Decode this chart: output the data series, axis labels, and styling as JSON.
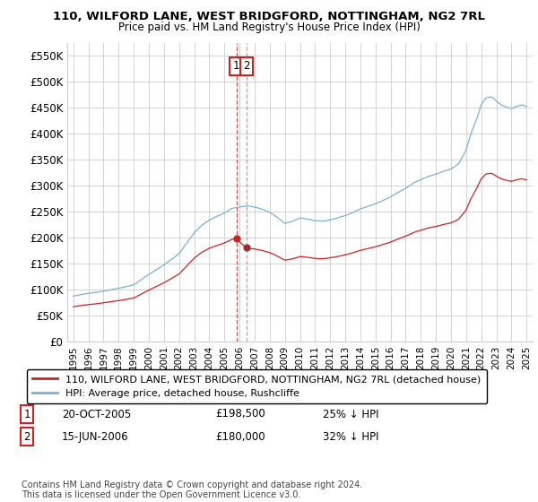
{
  "title": "110, WILFORD LANE, WEST BRIDGFORD, NOTTINGHAM, NG2 7RL",
  "subtitle": "Price paid vs. HM Land Registry's House Price Index (HPI)",
  "ylabel_ticks": [
    "£0",
    "£50K",
    "£100K",
    "£150K",
    "£200K",
    "£250K",
    "£300K",
    "£350K",
    "£400K",
    "£450K",
    "£500K",
    "£550K"
  ],
  "ytick_values": [
    0,
    50000,
    100000,
    150000,
    200000,
    250000,
    300000,
    350000,
    400000,
    450000,
    500000,
    550000
  ],
  "ylim": [
    0,
    575000
  ],
  "legend_line1": "110, WILFORD LANE, WEST BRIDGFORD, NOTTINGHAM, NG2 7RL (detached house)",
  "legend_line2": "HPI: Average price, detached house, Rushcliffe",
  "hpi_color": "#7ab0d4",
  "price_color": "#cc2222",
  "sale1_x": 2005.8,
  "sale1_price": 198500,
  "sale2_x": 2006.46,
  "sale2_price": 180000,
  "sale1_date": "20-OCT-2005",
  "sale1_pct": "25% ↓ HPI",
  "sale2_date": "15-JUN-2006",
  "sale2_pct": "32% ↓ HPI",
  "footer": "Contains HM Land Registry data © Crown copyright and database right 2024.\nThis data is licensed under the Open Government Licence v3.0.",
  "background_color": "#ffffff",
  "grid_color": "#cccccc"
}
